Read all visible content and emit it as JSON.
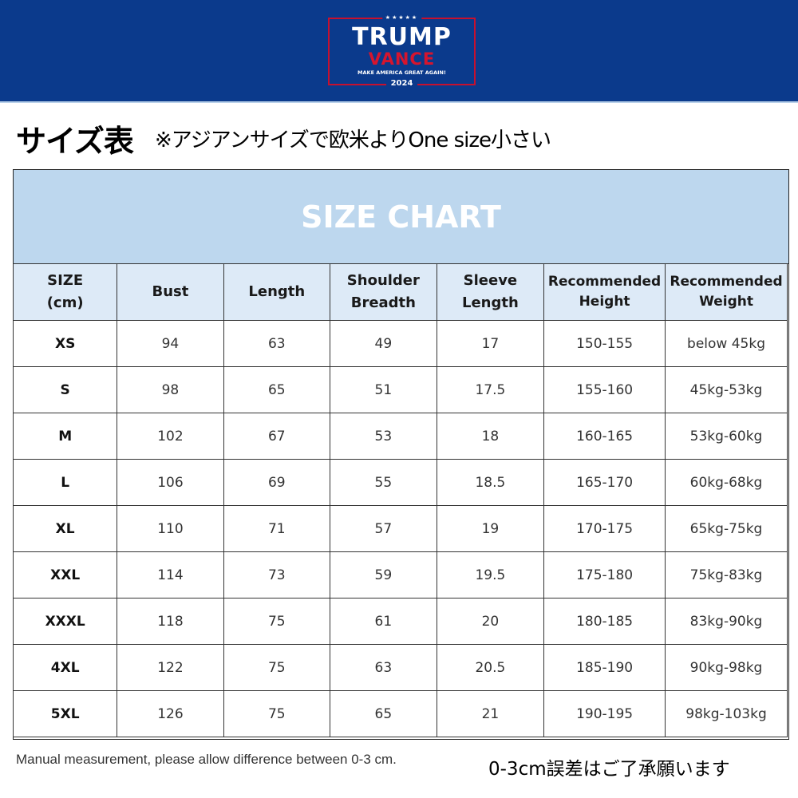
{
  "banner": {
    "bg_color": "#0b3a8c",
    "logo": {
      "stars": "★★★★★",
      "line1": "TRUMP",
      "line2": "VANCE",
      "slogan": "MAKE AMERICA GREAT AGAIN!",
      "year": "2024",
      "colors": {
        "white": "#ffffff",
        "red": "#d6152e",
        "border": "#c8102e"
      }
    }
  },
  "heading": {
    "title": "サイズ表",
    "note": "※アジアンサイズで欧米よりOne size小さい"
  },
  "size_chart": {
    "title": "SIZE CHART",
    "title_bg": "#bdd7ee",
    "header_bg": "#ddeaf7",
    "columns": [
      {
        "line1": "SIZE",
        "line2": "(cm)"
      },
      {
        "line1": "Bust",
        "line2": ""
      },
      {
        "line1": "Length",
        "line2": ""
      },
      {
        "line1": "Shoulder",
        "line2": "Breadth"
      },
      {
        "line1": "Sleeve",
        "line2": "Length"
      },
      {
        "line1": "Recommended",
        "line2": "Height"
      },
      {
        "line1": "Recommended",
        "line2": "Weight"
      }
    ],
    "rows": [
      [
        "XS",
        "94",
        "63",
        "49",
        "17",
        "150-155",
        "below 45kg"
      ],
      [
        "S",
        "98",
        "65",
        "51",
        "17.5",
        "155-160",
        "45kg-53kg"
      ],
      [
        "M",
        "102",
        "67",
        "53",
        "18",
        "160-165",
        "53kg-60kg"
      ],
      [
        "L",
        "106",
        "69",
        "55",
        "18.5",
        "165-170",
        "60kg-68kg"
      ],
      [
        "XL",
        "110",
        "71",
        "57",
        "19",
        "170-175",
        "65kg-75kg"
      ],
      [
        "XXL",
        "114",
        "73",
        "59",
        "19.5",
        "175-180",
        "75kg-83kg"
      ],
      [
        "XXXL",
        "118",
        "75",
        "61",
        "20",
        "180-185",
        "83kg-90kg"
      ],
      [
        "4XL",
        "122",
        "75",
        "63",
        "20.5",
        "185-190",
        "90kg-98kg"
      ],
      [
        "5XL",
        "126",
        "75",
        "65",
        "21",
        "190-195",
        "98kg-103kg"
      ]
    ]
  },
  "footer": {
    "english_note": "Manual measurement, please allow difference between 0-3 cm.",
    "japanese_note": "0-3cm誤差はご了承願います"
  }
}
